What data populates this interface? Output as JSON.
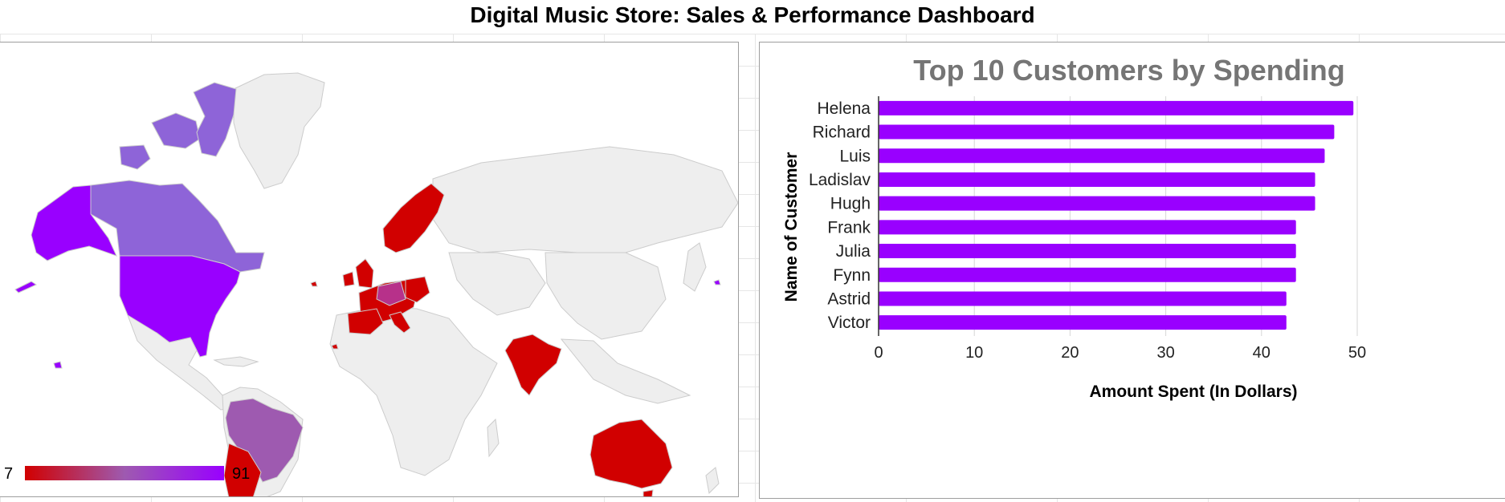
{
  "dashboard": {
    "title": "Digital Music Store: Sales & Performance Dashboard"
  },
  "map": {
    "legend": {
      "min_label": "7",
      "max_label": "91"
    },
    "colors": {
      "low": "#d10000",
      "mid": "#9e5ab0",
      "high": "#9900ff",
      "no_data": "#eeeeee",
      "border": "#cccccc"
    }
  },
  "chart_data": {
    "type": "bar",
    "orientation": "horizontal",
    "title": "Top 10 Customers by Spending",
    "xlabel": "Amount Spent (In Dollars)",
    "ylabel": "Name of Customer",
    "categories": [
      "Helena",
      "Richard",
      "Luis",
      "Ladislav",
      "Hugh",
      "Frank",
      "Julia",
      "Fynn",
      "Astrid",
      "Victor"
    ],
    "values": [
      49.6,
      47.6,
      46.6,
      45.6,
      45.6,
      43.6,
      43.6,
      43.6,
      42.6,
      42.6
    ],
    "xlim": [
      0,
      50
    ],
    "xticks": [
      "0",
      "10",
      "20",
      "30",
      "40",
      "50"
    ],
    "grid": true,
    "bar_color": "#9900ff"
  }
}
